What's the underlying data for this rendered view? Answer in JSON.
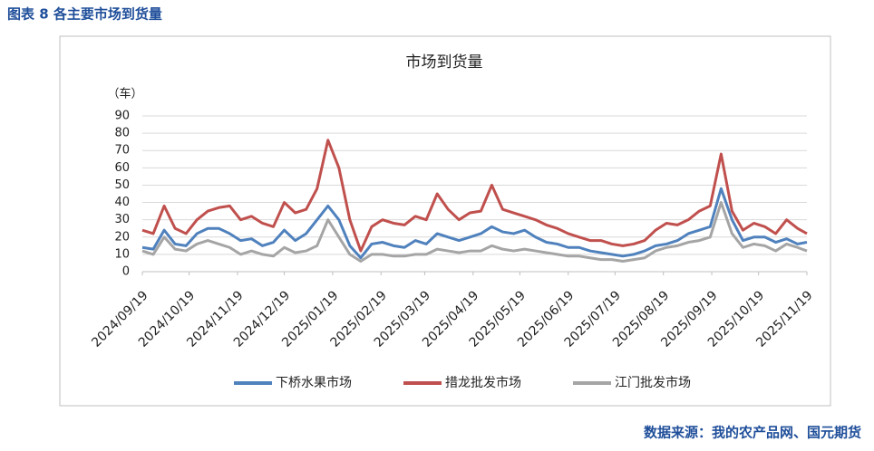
{
  "header": "图表 8 各主要市场到货量",
  "source": "数据来源：我的农产品网、国元期货",
  "chart_data": {
    "type": "line",
    "title": "市场到货量",
    "y_label": "（车）",
    "x": [
      "2024/09/19",
      "2024/09/26",
      "2024/10/03",
      "2024/10/10",
      "2024/10/17",
      "2024/10/24",
      "2024/10/31",
      "2024/11/07",
      "2024/11/14",
      "2024/11/21",
      "2024/11/28",
      "2024/12/05",
      "2024/12/12",
      "2024/12/19",
      "2024/12/26",
      "2025/01/02",
      "2025/01/09",
      "2025/01/16",
      "2025/01/23",
      "2025/01/30",
      "2025/02/06",
      "2025/02/13",
      "2025/02/20",
      "2025/02/27",
      "2025/03/06",
      "2025/03/13",
      "2025/03/20",
      "2025/03/27",
      "2025/04/03",
      "2025/04/10",
      "2025/04/17",
      "2025/04/24",
      "2025/05/01",
      "2025/05/08",
      "2025/05/15",
      "2025/05/22",
      "2025/05/29",
      "2025/06/05",
      "2025/06/12",
      "2025/06/19",
      "2025/06/26",
      "2025/07/03",
      "2025/07/10",
      "2025/07/17",
      "2025/07/24",
      "2025/07/31",
      "2025/08/07",
      "2025/08/14",
      "2025/08/21",
      "2025/08/28",
      "2025/09/04",
      "2025/09/11",
      "2025/09/18",
      "2025/09/25",
      "2025/10/02",
      "2025/10/09",
      "2025/10/16",
      "2025/10/23",
      "2025/10/30",
      "2025/11/06",
      "2025/11/13",
      "2025/11/19"
    ],
    "series": [
      {
        "name": "下桥水果市场",
        "color": "#4f81bd",
        "values": [
          14,
          13,
          24,
          16,
          15,
          22,
          25,
          25,
          22,
          18,
          19,
          15,
          17,
          24,
          18,
          22,
          30,
          38,
          30,
          15,
          8,
          16,
          17,
          15,
          14,
          18,
          16,
          22,
          20,
          18,
          20,
          22,
          26,
          23,
          22,
          24,
          20,
          17,
          16,
          14,
          14,
          12,
          11,
          10,
          9,
          10,
          12,
          15,
          16,
          18,
          22,
          24,
          26,
          48,
          30,
          18,
          20,
          20,
          17,
          19,
          16,
          17
        ]
      },
      {
        "name": "措龙批发市场",
        "color": "#c0504d",
        "values": [
          24,
          22,
          38,
          25,
          22,
          30,
          35,
          37,
          38,
          30,
          32,
          28,
          26,
          40,
          34,
          36,
          48,
          76,
          60,
          30,
          12,
          26,
          30,
          28,
          27,
          32,
          30,
          45,
          36,
          30,
          34,
          35,
          50,
          36,
          34,
          32,
          30,
          27,
          25,
          22,
          20,
          18,
          18,
          16,
          15,
          16,
          18,
          24,
          28,
          27,
          30,
          35,
          38,
          68,
          35,
          24,
          28,
          26,
          22,
          30,
          25,
          22
        ]
      },
      {
        "name": "江门批发市场",
        "color": "#a5a5a5",
        "values": [
          12,
          10,
          20,
          13,
          12,
          16,
          18,
          16,
          14,
          10,
          12,
          10,
          9,
          14,
          11,
          12,
          15,
          30,
          20,
          10,
          6,
          10,
          10,
          9,
          9,
          10,
          10,
          13,
          12,
          11,
          12,
          12,
          15,
          13,
          12,
          13,
          12,
          11,
          10,
          9,
          9,
          8,
          7,
          7,
          6,
          7,
          8,
          12,
          14,
          15,
          17,
          18,
          20,
          40,
          22,
          14,
          16,
          15,
          12,
          16,
          14,
          12
        ]
      }
    ],
    "xlim": [
      "2024/09/19",
      "2025/11/19"
    ],
    "xticks": [
      "2024/09/19",
      "2024/10/19",
      "2024/11/19",
      "2024/12/19",
      "2025/01/19",
      "2025/02/19",
      "2025/03/19",
      "2025/04/19",
      "2025/05/19",
      "2025/06/19",
      "2025/07/19",
      "2025/08/19",
      "2025/09/19",
      "2025/10/19",
      "2025/11/19"
    ],
    "ylim": [
      0,
      90
    ],
    "yticks": [
      0,
      10,
      20,
      30,
      40,
      50,
      60,
      70,
      80,
      90
    ],
    "grid": true,
    "legend": "bottom"
  }
}
